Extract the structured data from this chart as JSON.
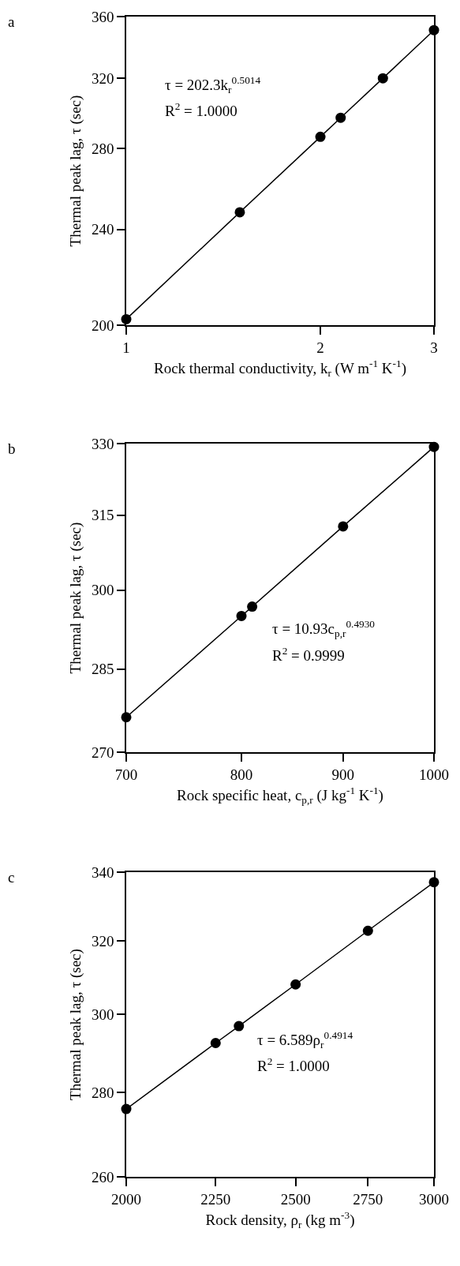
{
  "chart_data": [
    {
      "type": "line",
      "title": "a",
      "xlabel": "Rock thermal conductivity, k$_{r}$ (W m$^{-1}$ K$^{-1}$)",
      "ylabel": "Thermal peak lag, τ (sec)",
      "log": "xy",
      "x": [
        1,
        1.5,
        2,
        2.15,
        2.5,
        3
      ],
      "series": [
        {
          "color": "#000000",
          "values": [
            202.3,
            248.0,
            286.3,
            296.9,
            320.1,
            350.8
          ]
        }
      ],
      "xlim": [
        1,
        3
      ],
      "xticks": [
        1,
        2,
        3
      ],
      "ylim": [
        200,
        360
      ],
      "yticks": [
        200,
        240,
        280,
        320,
        360
      ],
      "marker": "circle",
      "line_style": "solid",
      "annotations": [
        "τ = 202.3k$_{r}$$^{0.5014}$",
        "R$^{2}$ = 1.0000"
      ]
    },
    {
      "type": "line",
      "title": "b",
      "xlabel": "Rock specific heat, c$_{p,r}$ (J kg$^{-1}$ K$^{-1}$)",
      "ylabel": "Thermal peak lag, τ (sec)",
      "log": "xy",
      "x": [
        700,
        800,
        810,
        900,
        1000
      ],
      "series": [
        {
          "color": "#000000",
          "values": [
            276.2,
            295.0,
            296.8,
            312.7,
            329.3
          ]
        }
      ],
      "xlim": [
        700,
        1000
      ],
      "xticks": [
        700,
        800,
        900,
        1000
      ],
      "ylim": [
        270,
        330
      ],
      "yticks": [
        270,
        285,
        300,
        315,
        330
      ],
      "marker": "circle",
      "line_style": "solid",
      "annotations": [
        "τ = 10.93c$_{p,r}$$^{0.4930}$",
        "R$^{2}$ = 0.9999"
      ]
    },
    {
      "type": "line",
      "title": "c",
      "xlabel": "Rock density, ρ$_{r}$ (kg m$^{-3}$)",
      "ylabel": "Thermal peak lag, τ (sec)",
      "log": "xy",
      "x": [
        2000,
        2250,
        2320,
        2500,
        2750,
        3000
      ],
      "series": [
        {
          "color": "#000000",
          "values": [
            276.0,
            292.5,
            296.9,
            308.0,
            322.9,
            337.0
          ]
        }
      ],
      "xlim": [
        2000,
        3000
      ],
      "xticks": [
        2000,
        2250,
        2500,
        2750,
        3000
      ],
      "ylim": [
        260,
        340
      ],
      "yticks": [
        260,
        280,
        300,
        320,
        340
      ],
      "marker": "circle",
      "line_style": "solid",
      "annotations": [
        "τ = 6.589ρ$_{r}$$^{0.4914}$",
        "R$^{2}$ = 1.0000"
      ]
    }
  ]
}
